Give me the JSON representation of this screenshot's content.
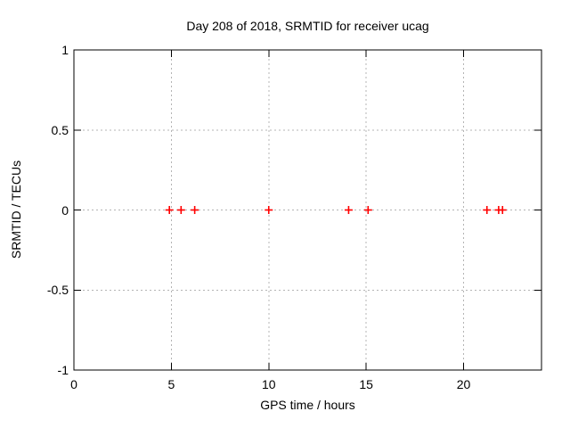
{
  "chart_data": {
    "type": "scatter",
    "title": "Day 208 of 2018, SRMTID for receiver ucag",
    "xlabel": "GPS time / hours",
    "ylabel": "SRMTID / TECUs",
    "xlim": [
      0,
      24
    ],
    "ylim": [
      -1,
      1
    ],
    "x_ticks": [
      0,
      5,
      10,
      15,
      20
    ],
    "y_ticks": [
      -1,
      -0.5,
      0,
      0.5,
      1
    ],
    "grid": true,
    "legend": "none",
    "series": [
      {
        "name": "SRMTID",
        "marker": "plus",
        "color": "#ff0000",
        "x": [
          4.9,
          5.5,
          6.2,
          10.0,
          14.1,
          15.1,
          21.2,
          21.8,
          22.0
        ],
        "y": [
          0,
          0,
          0,
          0,
          0,
          0,
          0,
          0,
          0
        ]
      }
    ],
    "colors": {
      "background": "#ffffff",
      "frame": "#000000",
      "grid": "#b4b4b4",
      "text": "#000000",
      "marker": "#ff0000"
    }
  }
}
